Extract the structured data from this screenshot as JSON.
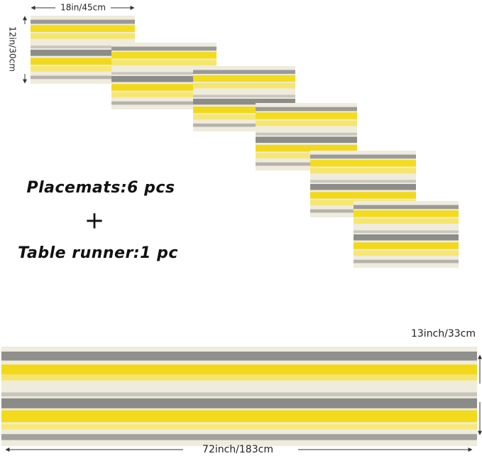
{
  "dimensions": {
    "placemat_width": "18in/45cm",
    "placemat_height": "12in/30cm",
    "runner_height": "13inch/33cm",
    "runner_width": "72inch/183cm"
  },
  "caption": {
    "placemats": "Placemats:6 pcs",
    "plus": "+",
    "runner": "Table runner:1 pc"
  }
}
